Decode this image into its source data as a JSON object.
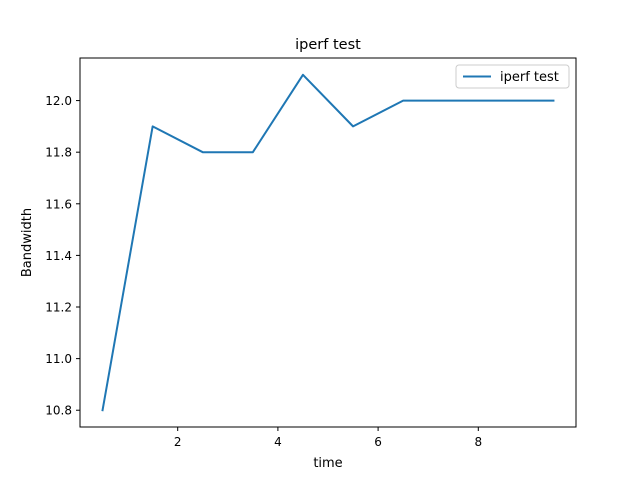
{
  "chart_data": {
    "type": "line",
    "title": "iperf test",
    "xlabel": "time",
    "ylabel": "Bandwidth",
    "xlim": [
      0.05,
      9.95
    ],
    "ylim": [
      10.735,
      12.165
    ],
    "xticks": [
      2,
      4,
      6,
      8
    ],
    "xtick_labels": [
      "2",
      "4",
      "6",
      "8"
    ],
    "yticks": [
      10.8,
      11.0,
      11.2,
      11.4,
      11.6,
      11.8,
      12.0
    ],
    "ytick_labels": [
      "10.8",
      "11.0",
      "11.2",
      "11.4",
      "11.6",
      "11.8",
      "12.0"
    ],
    "grid": false,
    "legend_position": "top-right",
    "series": [
      {
        "name": "iperf test",
        "color": "#1f77b4",
        "x": [
          0.5,
          1.5,
          2.5,
          3.5,
          4.5,
          5.5,
          6.5,
          7.5,
          8.5,
          9.5
        ],
        "y": [
          10.8,
          11.9,
          11.8,
          11.8,
          12.1,
          11.9,
          12.0,
          12.0,
          12.0,
          12.0
        ]
      }
    ]
  }
}
